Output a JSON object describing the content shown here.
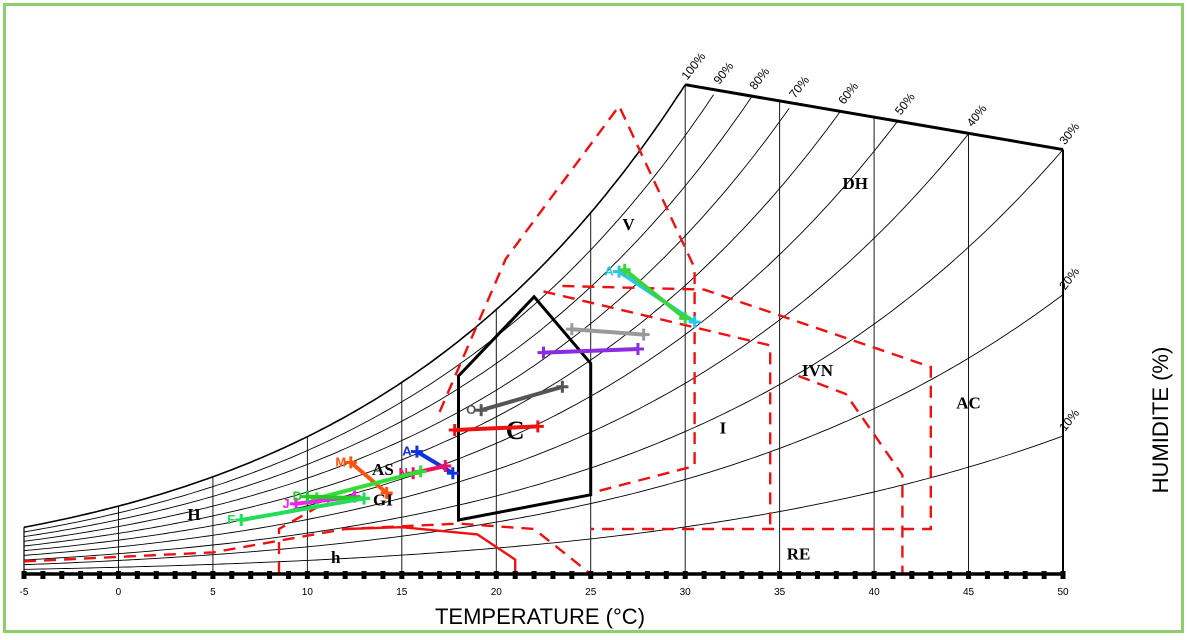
{
  "chart_data": {
    "type": "line",
    "subtype": "psychrometric-bioclimatic-chart",
    "xlabel": "TEMPERATURE (°C)",
    "ylabel": "HUMIDITE (%)",
    "xlim": [
      -5,
      50
    ],
    "x_ticks": [
      "-5",
      "0",
      "5",
      "10",
      "15",
      "20",
      "25",
      "30",
      "35",
      "40",
      "45",
      "50"
    ],
    "rh_curves": [
      {
        "label": "100%",
        "rh": 100
      },
      {
        "label": "90%",
        "rh": 90
      },
      {
        "label": "80%",
        "rh": 80
      },
      {
        "label": "70%",
        "rh": 70
      },
      {
        "label": "60%",
        "rh": 60
      },
      {
        "label": "50%",
        "rh": 50
      },
      {
        "label": "40%",
        "rh": 40
      },
      {
        "label": "30%",
        "rh": 30
      },
      {
        "label": "20%",
        "rh": 20
      },
      {
        "label": "10%",
        "rh": 10
      }
    ],
    "zone_labels": [
      {
        "text": "DH",
        "t": 39
      },
      {
        "text": "V",
        "t": 27
      },
      {
        "text": "IVN",
        "t": 37
      },
      {
        "text": "AC",
        "t": 45
      },
      {
        "text": "I",
        "t": 32
      },
      {
        "text": "C",
        "t": 21
      },
      {
        "text": "AS",
        "t": 14
      },
      {
        "text": "GI",
        "t": 14
      },
      {
        "text": "H",
        "t": 4
      },
      {
        "text": "h",
        "t": 11.5
      },
      {
        "text": "RE",
        "t": 36
      }
    ],
    "series": [
      {
        "name": "A",
        "color": "#29c8e8",
        "points": [
          [
            26.5,
            0.0168
          ],
          [
            30.5,
            0.014
          ]
        ]
      },
      {
        "name": "",
        "color": "#3bd43b",
        "points": [
          [
            26.8,
            0.0169
          ],
          [
            30.0,
            0.0142
          ]
        ]
      },
      {
        "name": "",
        "color": "#999999",
        "points": [
          [
            24.0,
            0.0136
          ],
          [
            27.8,
            0.0133
          ]
        ]
      },
      {
        "name": "",
        "color": "#8b2be2",
        "points": [
          [
            22.5,
            0.0123
          ],
          [
            27.5,
            0.0125
          ]
        ]
      },
      {
        "name": "O",
        "color": "#555555",
        "points": [
          [
            19.2,
            0.0091
          ],
          [
            23.5,
            0.0104
          ]
        ]
      },
      {
        "name": "",
        "color": "#ee1111",
        "points": [
          [
            17.8,
            0.008
          ],
          [
            22.2,
            0.0082
          ]
        ]
      },
      {
        "name": "A",
        "color": "#1133dd",
        "points": [
          [
            15.8,
            0.0068
          ],
          [
            17.7,
            0.0056
          ]
        ]
      },
      {
        "name": "N",
        "color": "#ee1166",
        "points": [
          [
            15.6,
            0.0056
          ],
          [
            17.3,
            0.006
          ]
        ]
      },
      {
        "name": "M",
        "color": "#ff5511",
        "points": [
          [
            12.3,
            0.0062
          ],
          [
            14.2,
            0.0045
          ]
        ]
      },
      {
        "name": "",
        "color": "#33dd33",
        "points": [
          [
            10.5,
            0.0042
          ],
          [
            16.0,
            0.0057
          ]
        ]
      },
      {
        "name": "J",
        "color": "#ee22ee",
        "points": [
          [
            9.4,
            0.0039
          ],
          [
            12.5,
            0.0043
          ]
        ]
      },
      {
        "name": "D",
        "color": "#22cc22",
        "points": [
          [
            10.0,
            0.0043
          ],
          [
            13.0,
            0.0042
          ]
        ]
      },
      {
        "name": "F",
        "color": "#22dd55",
        "points": [
          [
            6.5,
            0.003
          ],
          [
            13.0,
            0.0042
          ]
        ]
      }
    ]
  }
}
